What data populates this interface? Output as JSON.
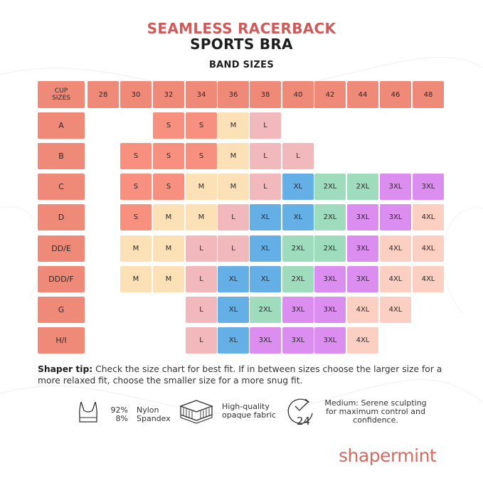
{
  "title_line1": "SEAMLESS RACERBACK",
  "title_line2": "SPORTS BRA",
  "band_title": "BAND SIZES",
  "corner_label_line1": "CUP",
  "corner_label_line2": "SIZES",
  "bands": [
    "28",
    "30",
    "32",
    "34",
    "36",
    "38",
    "40",
    "42",
    "44",
    "46",
    "48"
  ],
  "cups": [
    "A",
    "B",
    "C",
    "D",
    "DD/E",
    "DDD/F",
    "G",
    "H/I"
  ],
  "grid": [
    [
      "",
      "",
      "S",
      "S",
      "M",
      "L",
      "",
      "",
      "",
      "",
      ""
    ],
    [
      "",
      "S",
      "S",
      "S",
      "M",
      "L",
      "L",
      "",
      "",
      "",
      ""
    ],
    [
      "",
      "S",
      "S",
      "M",
      "M",
      "L",
      "XL",
      "2XL",
      "2XL",
      "3XL",
      "3XL"
    ],
    [
      "",
      "S",
      "M",
      "M",
      "L",
      "XL",
      "XL",
      "2XL",
      "3XL",
      "3XL",
      "4XL"
    ],
    [
      "",
      "M",
      "M",
      "L",
      "L",
      "XL",
      "2XL",
      "2XL",
      "3XL",
      "4XL",
      "4XL"
    ],
    [
      "",
      "M",
      "M",
      "L",
      "XL",
      "XL",
      "2XL",
      "3XL",
      "3XL",
      "4XL",
      "4XL"
    ],
    [
      "",
      "",
      "",
      "L",
      "XL",
      "2XL",
      "3XL",
      "3XL",
      "4XL",
      "4XL",
      ""
    ],
    [
      "",
      "",
      "",
      "L",
      "XL",
      "3XL",
      "3XL",
      "3XL",
      "4XL",
      "",
      ""
    ]
  ],
  "size_colors": {
    "S": "#f7907e",
    "M": "#fce0b6",
    "L": "#f2b9bc",
    "XL": "#64afe6",
    "2XL": "#9fdbbd",
    "3XL": "#dc8ef0",
    "4XL": "#fbcfc1",
    "header": "#f08a78"
  },
  "tip": {
    "label": "Shaper tip:",
    "text": " Check the size chart for best fit. If in between sizes choose the larger size for a more relaxed fit, choose the smaller size for a more snug fit."
  },
  "features": {
    "composition": {
      "icon": "sports-bra-icon",
      "pct1": "92%",
      "mat1": "Nylon",
      "pct2": "8%",
      "mat2": "Spandex"
    },
    "fabric": {
      "icon": "fabric-layers-icon",
      "line1": "High-quality",
      "line2": "opaque fabric"
    },
    "control": {
      "icon": "clock-24-icon",
      "line1": "Medium: Serene sculpting",
      "line2": "for maximum control and",
      "line3": "confidence."
    }
  },
  "logo": "shapermint"
}
